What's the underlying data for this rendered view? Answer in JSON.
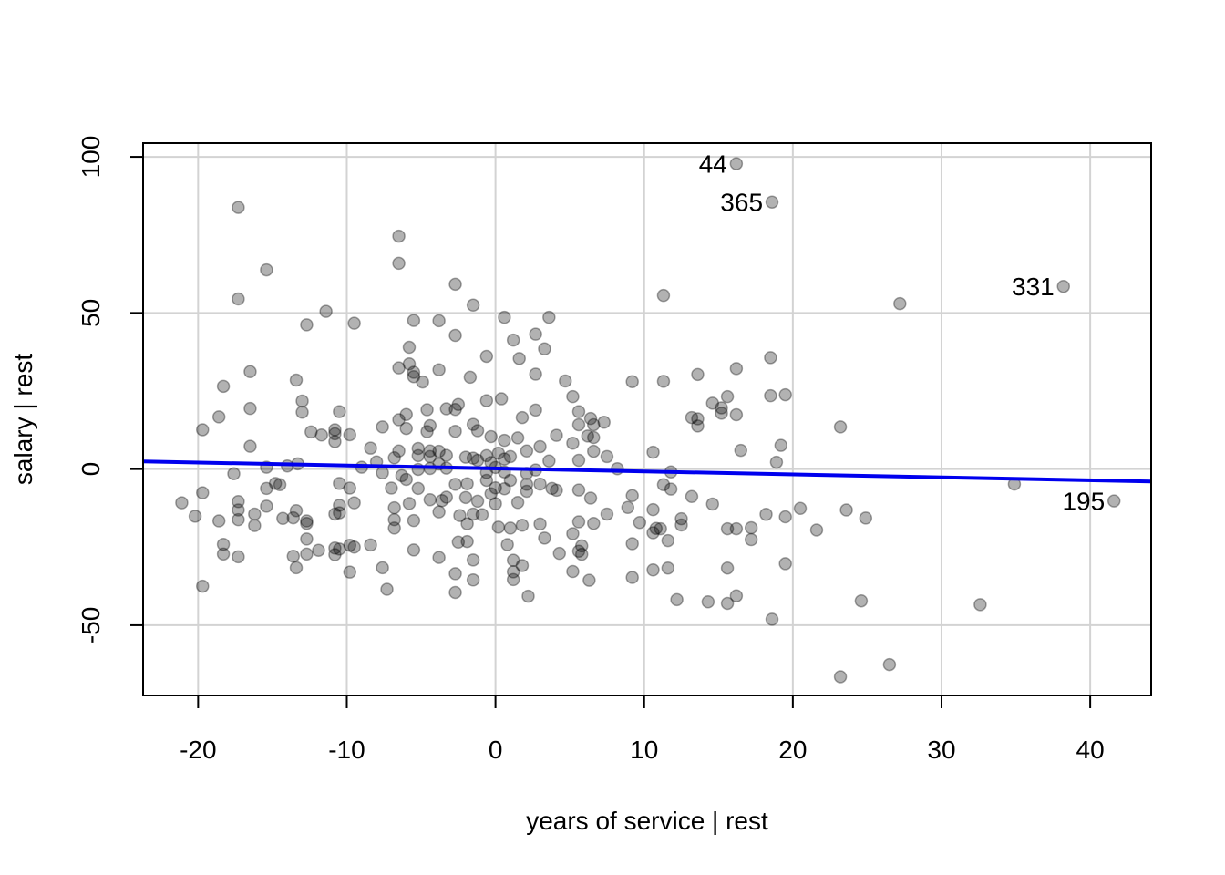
{
  "chart_data": {
    "type": "scatter",
    "title": "",
    "xlabel": "years of service | rest",
    "ylabel": "salary | rest",
    "xlim": [
      -23.7,
      44.1
    ],
    "ylim": [
      -72.5,
      104.4
    ],
    "xticks": [
      -20,
      -10,
      0,
      10,
      20,
      30,
      40
    ],
    "yticks": [
      -50,
      0,
      50,
      100
    ],
    "xtick_labels": [
      "-20",
      "-10",
      "0",
      "10",
      "20",
      "30",
      "40"
    ],
    "ytick_labels": [
      "-50",
      "0",
      "50",
      "100"
    ],
    "grid": true,
    "colors": {
      "points": "#000000",
      "point_alpha": 0.3,
      "fit_line": "#0000ee",
      "grid": "#d3d3d3"
    },
    "fit_line": {
      "intercept": 0.2,
      "slope": -0.095
    },
    "labeled_points": [
      {
        "label": "44",
        "x": 16.2,
        "y": 97.8
      },
      {
        "label": "365",
        "x": 18.6,
        "y": 85.5
      },
      {
        "label": "331",
        "x": 38.2,
        "y": 58.5
      },
      {
        "label": "195",
        "x": 41.6,
        "y": -10.2
      }
    ],
    "points": [
      [
        -21.1,
        -10.8
      ],
      [
        -20.2,
        -15.1
      ],
      [
        -19.7,
        12.6
      ],
      [
        -19.7,
        -7.6
      ],
      [
        -19.7,
        -37.5
      ],
      [
        -18.6,
        16.7
      ],
      [
        -18.6,
        -16.6
      ],
      [
        -18.3,
        26.5
      ],
      [
        -18.3,
        -24.1
      ],
      [
        -18.3,
        -27.2
      ],
      [
        -17.6,
        -1.5
      ],
      [
        -17.3,
        83.8
      ],
      [
        -17.3,
        54.5
      ],
      [
        -17.3,
        -10.4
      ],
      [
        -17.3,
        -13.1
      ],
      [
        -17.3,
        -16.2
      ],
      [
        -17.3,
        -28.1
      ],
      [
        -16.5,
        31.2
      ],
      [
        -16.5,
        19.4
      ],
      [
        -16.5,
        7.3
      ],
      [
        -16.2,
        -14.4
      ],
      [
        -16.2,
        -18.1
      ],
      [
        -15.4,
        63.8
      ],
      [
        -15.4,
        0.6
      ],
      [
        -15.4,
        -6.2
      ],
      [
        -15.4,
        -11.9
      ],
      [
        -14.8,
        -4.6
      ],
      [
        -14.5,
        -5.0
      ],
      [
        -14.3,
        -15.8
      ],
      [
        -14.0,
        1.0
      ],
      [
        -13.6,
        -15.6
      ],
      [
        -13.6,
        -27.9
      ],
      [
        -13.4,
        28.5
      ],
      [
        -13.4,
        -13.3
      ],
      [
        -13.4,
        -31.6
      ],
      [
        -13.3,
        1.7
      ],
      [
        -13.0,
        21.8
      ],
      [
        -13.0,
        18.2
      ],
      [
        -12.7,
        46.2
      ],
      [
        -12.7,
        -16.6
      ],
      [
        -12.7,
        -17.4
      ],
      [
        -12.7,
        -22.4
      ],
      [
        -12.7,
        -27.2
      ],
      [
        -12.4,
        11.9
      ],
      [
        -11.9,
        -26.0
      ],
      [
        -11.7,
        10.9
      ],
      [
        -11.4,
        50.5
      ],
      [
        -10.8,
        12.6
      ],
      [
        -10.8,
        11.3
      ],
      [
        -10.8,
        8.8
      ],
      [
        -10.8,
        -14.4
      ],
      [
        -10.8,
        -25.3
      ],
      [
        -10.8,
        -27.4
      ],
      [
        -10.5,
        18.4
      ],
      [
        -10.5,
        -4.6
      ],
      [
        -10.5,
        -11.6
      ],
      [
        -10.5,
        -14.0
      ],
      [
        -10.5,
        -25.6
      ],
      [
        -9.8,
        -6.1
      ],
      [
        -9.8,
        -24.4
      ],
      [
        -9.8,
        -33.0
      ],
      [
        -9.8,
        11.0
      ],
      [
        -9.5,
        46.7
      ],
      [
        -9.5,
        -10.8
      ],
      [
        -9.5,
        -25.0
      ],
      [
        -9.0,
        0.6
      ],
      [
        -8.4,
        6.7
      ],
      [
        -8.4,
        -24.3
      ],
      [
        -8.0,
        2.3
      ],
      [
        -7.6,
        13.5
      ],
      [
        -7.6,
        -1.2
      ],
      [
        -7.6,
        -31.6
      ],
      [
        -7.3,
        -38.5
      ],
      [
        -7.0,
        -6.1
      ],
      [
        -6.8,
        3.6
      ],
      [
        -6.8,
        -12.4
      ],
      [
        -6.8,
        -16.2
      ],
      [
        -6.8,
        -18.9
      ],
      [
        -6.5,
        74.6
      ],
      [
        -6.5,
        65.9
      ],
      [
        -6.5,
        32.4
      ],
      [
        -6.5,
        15.8
      ],
      [
        -6.5,
        5.8
      ],
      [
        -6.3,
        -2.1
      ],
      [
        -6.0,
        17.5
      ],
      [
        -6.0,
        13.0
      ],
      [
        -6.0,
        -3.3
      ],
      [
        -5.8,
        39.0
      ],
      [
        -5.8,
        33.7
      ],
      [
        -5.8,
        -11.0
      ],
      [
        -5.5,
        47.6
      ],
      [
        -5.5,
        31.0
      ],
      [
        -5.5,
        29.6
      ],
      [
        -5.5,
        -16.5
      ],
      [
        -5.5,
        -25.9
      ],
      [
        -5.2,
        6.6
      ],
      [
        -5.2,
        4.3
      ],
      [
        -5.2,
        -0.1
      ],
      [
        -5.2,
        -6.2
      ],
      [
        -4.9,
        27.9
      ],
      [
        -4.6,
        19.0
      ],
      [
        -4.6,
        12.0
      ],
      [
        -4.4,
        13.9
      ],
      [
        -4.4,
        5.8
      ],
      [
        -4.4,
        4.0
      ],
      [
        -4.4,
        0.2
      ],
      [
        -4.4,
        -9.8
      ],
      [
        -3.8,
        47.5
      ],
      [
        -3.8,
        31.8
      ],
      [
        -3.8,
        5.7
      ],
      [
        -3.8,
        1.6
      ],
      [
        -3.8,
        -13.7
      ],
      [
        -3.8,
        -28.3
      ],
      [
        -3.6,
        -10.1
      ],
      [
        -3.3,
        19.3
      ],
      [
        -3.3,
        4.4
      ],
      [
        -3.3,
        0.3
      ],
      [
        -3.3,
        -9.0
      ],
      [
        -2.7,
        59.2
      ],
      [
        -2.7,
        42.8
      ],
      [
        -2.7,
        19.1
      ],
      [
        -2.7,
        12.1
      ],
      [
        -2.7,
        -4.9
      ],
      [
        -2.7,
        -39.5
      ],
      [
        -2.7,
        -33.5
      ],
      [
        -2.5,
        20.7
      ],
      [
        -2.5,
        -23.4
      ],
      [
        -2.4,
        -14.9
      ],
      [
        -2.0,
        3.8
      ],
      [
        -2.0,
        -9.1
      ],
      [
        -1.9,
        -4.7
      ],
      [
        -1.9,
        -17.5
      ],
      [
        -1.9,
        -23.2
      ],
      [
        -1.7,
        29.4
      ],
      [
        -1.5,
        52.5
      ],
      [
        -1.5,
        14.3
      ],
      [
        -1.5,
        3.5
      ],
      [
        -1.5,
        -14.4
      ],
      [
        -1.5,
        -29.1
      ],
      [
        -1.5,
        -35.5
      ],
      [
        -1.2,
        12.3
      ],
      [
        -1.2,
        2.8
      ],
      [
        -1.2,
        -10.3
      ],
      [
        -0.9,
        -14.6
      ],
      [
        -0.6,
        36.1
      ],
      [
        -0.6,
        21.9
      ],
      [
        -0.6,
        4.3
      ],
      [
        -0.6,
        -1.1
      ],
      [
        -0.6,
        -3.6
      ],
      [
        -0.3,
        10.4
      ],
      [
        -0.3,
        2.1
      ],
      [
        -0.3,
        -7.9
      ],
      [
        0.0,
        0.5
      ],
      [
        0.0,
        -6.0
      ],
      [
        0.0,
        -11.1
      ],
      [
        0.2,
        5.1
      ],
      [
        0.2,
        -18.6
      ],
      [
        0.4,
        22.5
      ],
      [
        0.6,
        48.6
      ],
      [
        0.6,
        9.2
      ],
      [
        0.6,
        3.2
      ],
      [
        0.6,
        -0.9
      ],
      [
        0.6,
        -6.3
      ],
      [
        0.8,
        -24.2
      ],
      [
        1.0,
        -18.9
      ],
      [
        1.0,
        4.0
      ],
      [
        1.0,
        -3.6
      ],
      [
        1.2,
        41.3
      ],
      [
        1.2,
        -29.2
      ],
      [
        1.2,
        -32.9
      ],
      [
        1.2,
        -35.4
      ],
      [
        1.5,
        10.0
      ],
      [
        1.5,
        -10.7
      ],
      [
        1.6,
        35.4
      ],
      [
        1.8,
        16.5
      ],
      [
        1.8,
        -18.0
      ],
      [
        1.8,
        -30.9
      ],
      [
        2.1,
        5.8
      ],
      [
        2.1,
        -1.4
      ],
      [
        2.1,
        -4.9
      ],
      [
        2.1,
        -7.1
      ],
      [
        2.2,
        -40.7
      ],
      [
        2.7,
        43.2
      ],
      [
        2.7,
        30.4
      ],
      [
        2.7,
        18.9
      ],
      [
        2.7,
        -0.3
      ],
      [
        3.0,
        7.2
      ],
      [
        3.0,
        -4.8
      ],
      [
        3.0,
        -17.6
      ],
      [
        3.3,
        38.5
      ],
      [
        3.3,
        -22.1
      ],
      [
        3.6,
        48.6
      ],
      [
        3.6,
        2.6
      ],
      [
        3.8,
        -6.2
      ],
      [
        4.1,
        -6.8
      ],
      [
        4.1,
        10.8
      ],
      [
        4.3,
        -27.0
      ],
      [
        4.7,
        28.2
      ],
      [
        5.2,
        23.2
      ],
      [
        5.2,
        8.3
      ],
      [
        5.2,
        -20.7
      ],
      [
        5.2,
        -32.8
      ],
      [
        5.6,
        18.4
      ],
      [
        5.6,
        14.2
      ],
      [
        5.6,
        2.8
      ],
      [
        5.6,
        -6.7
      ],
      [
        5.6,
        -16.9
      ],
      [
        5.6,
        -26.3
      ],
      [
        5.8,
        -24.6
      ],
      [
        5.8,
        -27.3
      ],
      [
        6.2,
        10.6
      ],
      [
        6.3,
        -35.6
      ],
      [
        6.4,
        16.2
      ],
      [
        6.4,
        -9.3
      ],
      [
        6.6,
        14.2
      ],
      [
        6.6,
        10.1
      ],
      [
        6.6,
        5.7
      ],
      [
        6.6,
        -17.4
      ],
      [
        7.3,
        15.0
      ],
      [
        7.5,
        4.0
      ],
      [
        7.5,
        -14.4
      ],
      [
        8.2,
        0.1
      ],
      [
        8.9,
        -12.3
      ],
      [
        9.2,
        28.0
      ],
      [
        9.2,
        -8.5
      ],
      [
        9.2,
        -23.9
      ],
      [
        9.2,
        -34.7
      ],
      [
        9.7,
        -17.1
      ],
      [
        10.6,
        5.4
      ],
      [
        10.6,
        -13.0
      ],
      [
        10.6,
        -20.4
      ],
      [
        10.6,
        -32.3
      ],
      [
        10.8,
        -19.0
      ],
      [
        11.1,
        -19.1
      ],
      [
        11.3,
        55.6
      ],
      [
        11.3,
        28.1
      ],
      [
        11.3,
        -5.0
      ],
      [
        11.6,
        -22.9
      ],
      [
        11.6,
        -31.7
      ],
      [
        11.8,
        -0.9
      ],
      [
        11.8,
        -6.4
      ],
      [
        12.2,
        -41.8
      ],
      [
        12.5,
        -15.9
      ],
      [
        12.5,
        -17.9
      ],
      [
        13.2,
        -8.8
      ],
      [
        13.2,
        16.5
      ],
      [
        13.6,
        30.3
      ],
      [
        13.6,
        16.1
      ],
      [
        13.6,
        13.8
      ],
      [
        14.3,
        -42.5
      ],
      [
        14.6,
        21.1
      ],
      [
        14.6,
        -11.2
      ],
      [
        15.2,
        19.6
      ],
      [
        15.2,
        17.9
      ],
      [
        15.6,
        23.2
      ],
      [
        15.6,
        -19.1
      ],
      [
        15.6,
        -31.7
      ],
      [
        15.6,
        -43.0
      ],
      [
        16.2,
        32.2
      ],
      [
        16.2,
        17.4
      ],
      [
        16.2,
        -19.1
      ],
      [
        16.2,
        -40.6
      ],
      [
        16.5,
        6.0
      ],
      [
        17.2,
        -18.8
      ],
      [
        17.2,
        -22.6
      ],
      [
        18.2,
        -14.5
      ],
      [
        18.5,
        35.7
      ],
      [
        18.5,
        23.5
      ],
      [
        18.6,
        -48.1
      ],
      [
        18.9,
        2.2
      ],
      [
        19.2,
        7.6
      ],
      [
        19.5,
        23.8
      ],
      [
        19.5,
        -15.3
      ],
      [
        19.5,
        -30.3
      ],
      [
        20.5,
        -12.6
      ],
      [
        21.6,
        -19.5
      ],
      [
        23.2,
        13.5
      ],
      [
        23.2,
        -66.5
      ],
      [
        23.6,
        -13.1
      ],
      [
        24.6,
        -42.2
      ],
      [
        24.9,
        -15.7
      ],
      [
        26.5,
        -62.6
      ],
      [
        27.2,
        53.0
      ],
      [
        32.6,
        -43.4
      ],
      [
        34.9,
        -4.8
      ]
    ]
  }
}
